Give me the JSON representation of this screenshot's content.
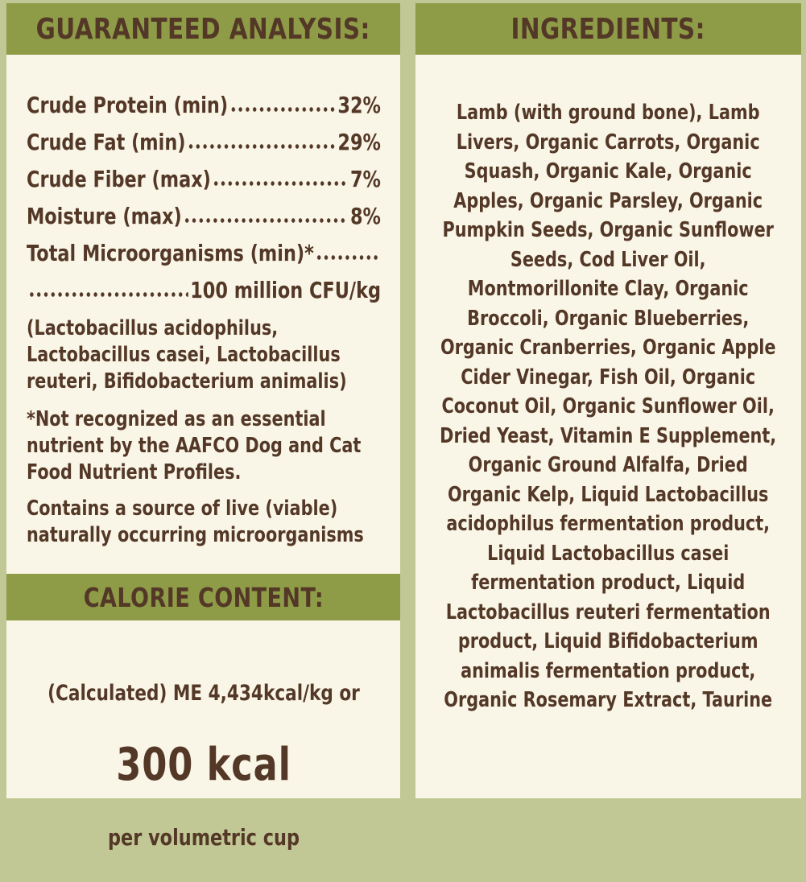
{
  "colors": {
    "olive": "#8e9b47",
    "sage": "#c1c795",
    "cream": "#faf6e7",
    "brown": "#543827"
  },
  "left_panel": {
    "header": "GUARANTEED ANALYSIS:",
    "analysis_rows": [
      {
        "label": "Crude Protein (min)",
        "value": "32%"
      },
      {
        "label": "Crude Fat (min)",
        "value": "29%"
      },
      {
        "label": "Crude Fiber (max)",
        "value": "7%"
      },
      {
        "label": "Moisture (max)",
        "value": "8%"
      },
      {
        "label": "Total Microorganisms (min)*",
        "value": ""
      },
      {
        "label": "",
        "value": "100 million CFU/kg"
      }
    ],
    "microorganisms_note_lines": [
      "(Lactobacillus acidophilus,",
      "Lactobacillus casei, Lactobacillus",
      "reuteri, Bifidobacterium animalis)"
    ],
    "aafco_note_lines": [
      "*Not recognized as an essential",
      "nutrient by the AAFCO Dog and Cat",
      "Food Nutrient Profiles."
    ],
    "live_note_lines": [
      "Contains a source of live (viable)",
      "naturally occurring microorganisms"
    ],
    "calorie_header": "CALORIE CONTENT:",
    "calorie_line1": "(Calculated) ME 4,434kcal/kg or",
    "calorie_value": "300 kcal",
    "calorie_line3": "per volumetric cup"
  },
  "right_panel": {
    "header": "INGREDIENTS:",
    "ingredients_lines": [
      "Lamb (with ground bone), Lamb",
      "Livers, Organic Carrots, Organic",
      "Squash, Organic Kale, Organic",
      "Apples, Organic Parsley, Organic",
      "Pumpkin Seeds, Organic Sunflower",
      "Seeds, Cod Liver Oil,",
      "Montmorillonite Clay, Organic",
      "Broccoli, Organic Blueberries,",
      "Organic Cranberries, Organic Apple",
      "Cider Vinegar, Fish Oil, Organic",
      "Coconut Oil, Organic Sunflower Oil,",
      "Dried Yeast, Vitamin E Supplement,",
      "Organic Ground Alfalfa, Dried",
      "Organic Kelp, Liquid Lactobacillus",
      "acidophilus fermentation product,",
      "Liquid Lactobacillus casei",
      "fermentation product, Liquid",
      "Lactobacillus reuteri fermentation",
      "product, Liquid Bifidobacterium",
      "animalis fermentation product,",
      "Organic Rosemary Extract, Taurine"
    ]
  }
}
